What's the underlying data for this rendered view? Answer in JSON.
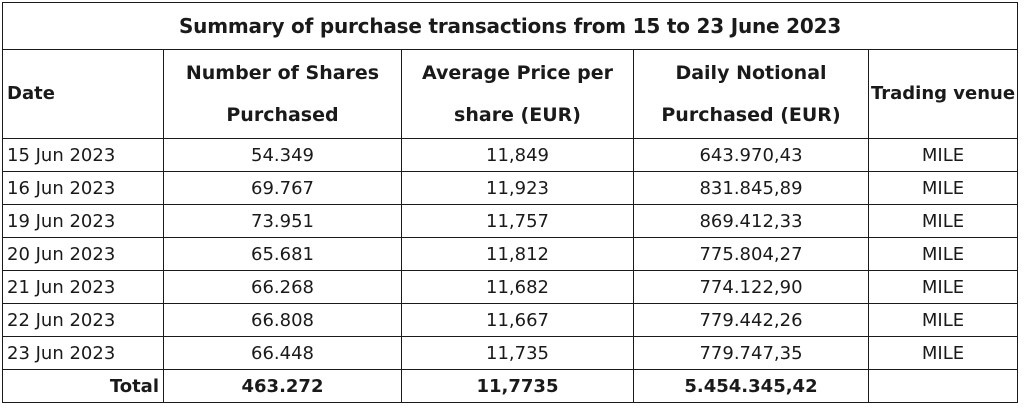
{
  "table": {
    "title": "Summary of purchase transactions from 15 to 23 June 2023",
    "headers": {
      "date": "Date",
      "shares": "Number of Shares Purchased",
      "avg_price": "Average Price per share (EUR)",
      "notional": "Daily Notional Purchased (EUR)",
      "venue": "Trading venue"
    },
    "rows": [
      {
        "date": "15 Jun 2023",
        "shares": "54.349",
        "avg_price": "11,849",
        "notional": "643.970,43",
        "venue": "MILE"
      },
      {
        "date": "16 Jun 2023",
        "shares": "69.767",
        "avg_price": "11,923",
        "notional": "831.845,89",
        "venue": "MILE"
      },
      {
        "date": "19 Jun 2023",
        "shares": "73.951",
        "avg_price": "11,757",
        "notional": "869.412,33",
        "venue": "MILE"
      },
      {
        "date": "20 Jun 2023",
        "shares": "65.681",
        "avg_price": "11,812",
        "notional": "775.804,27",
        "venue": "MILE"
      },
      {
        "date": "21 Jun 2023",
        "shares": "66.268",
        "avg_price": "11,682",
        "notional": "774.122,90",
        "venue": "MILE"
      },
      {
        "date": "22 Jun 2023",
        "shares": "66.808",
        "avg_price": "11,667",
        "notional": "779.442,26",
        "venue": "MILE"
      },
      {
        "date": "23 Jun 2023",
        "shares": "66.448",
        "avg_price": "11,735",
        "notional": "779.747,35",
        "venue": "MILE"
      }
    ],
    "total": {
      "label": "Total",
      "shares": "463.272",
      "avg_price": "11,7735",
      "notional": "5.454.345,42",
      "venue": ""
    }
  }
}
